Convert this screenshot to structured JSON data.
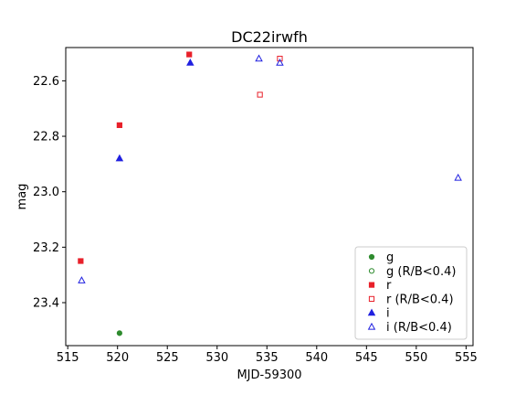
{
  "chart_data": {
    "type": "scatter",
    "title": "DC22irwfh",
    "xlabel": "MJD-59300",
    "ylabel": "mag",
    "xlim": [
      514.8,
      555.7
    ],
    "ylim": [
      23.555,
      22.48
    ],
    "y_inverted": true,
    "grid": false,
    "x_ticks": [
      515,
      520,
      525,
      530,
      535,
      540,
      545,
      550,
      555
    ],
    "y_ticks": [
      22.6,
      22.8,
      23.0,
      23.2,
      23.4
    ],
    "legend_position": "lower-right",
    "series": [
      {
        "name": "g",
        "color": "#2e8b2e",
        "marker": "circle",
        "filled": true,
        "points": [
          {
            "x": 520.2,
            "y": 23.51
          }
        ]
      },
      {
        "name": "g (R/B<0.4)",
        "color": "#2e8b2e",
        "marker": "circle",
        "filled": false,
        "points": []
      },
      {
        "name": "r",
        "color": "#e8202a",
        "marker": "square",
        "filled": true,
        "points": [
          {
            "x": 516.3,
            "y": 23.25
          },
          {
            "x": 520.2,
            "y": 22.76
          },
          {
            "x": 527.2,
            "y": 22.505
          }
        ]
      },
      {
        "name": "r (R/B<0.4)",
        "color": "#e8202a",
        "marker": "square",
        "filled": false,
        "points": [
          {
            "x": 534.3,
            "y": 22.65
          },
          {
            "x": 536.3,
            "y": 22.52
          }
        ]
      },
      {
        "name": "i",
        "color": "#2020e0",
        "marker": "triangle",
        "filled": true,
        "points": [
          {
            "x": 520.2,
            "y": 22.88
          },
          {
            "x": 527.3,
            "y": 22.535
          }
        ]
      },
      {
        "name": "i (R/B<0.4)",
        "color": "#2020e0",
        "marker": "triangle",
        "filled": false,
        "points": [
          {
            "x": 516.4,
            "y": 23.32
          },
          {
            "x": 534.2,
            "y": 22.52
          },
          {
            "x": 536.3,
            "y": 22.535
          },
          {
            "x": 554.2,
            "y": 22.95
          }
        ]
      }
    ]
  }
}
